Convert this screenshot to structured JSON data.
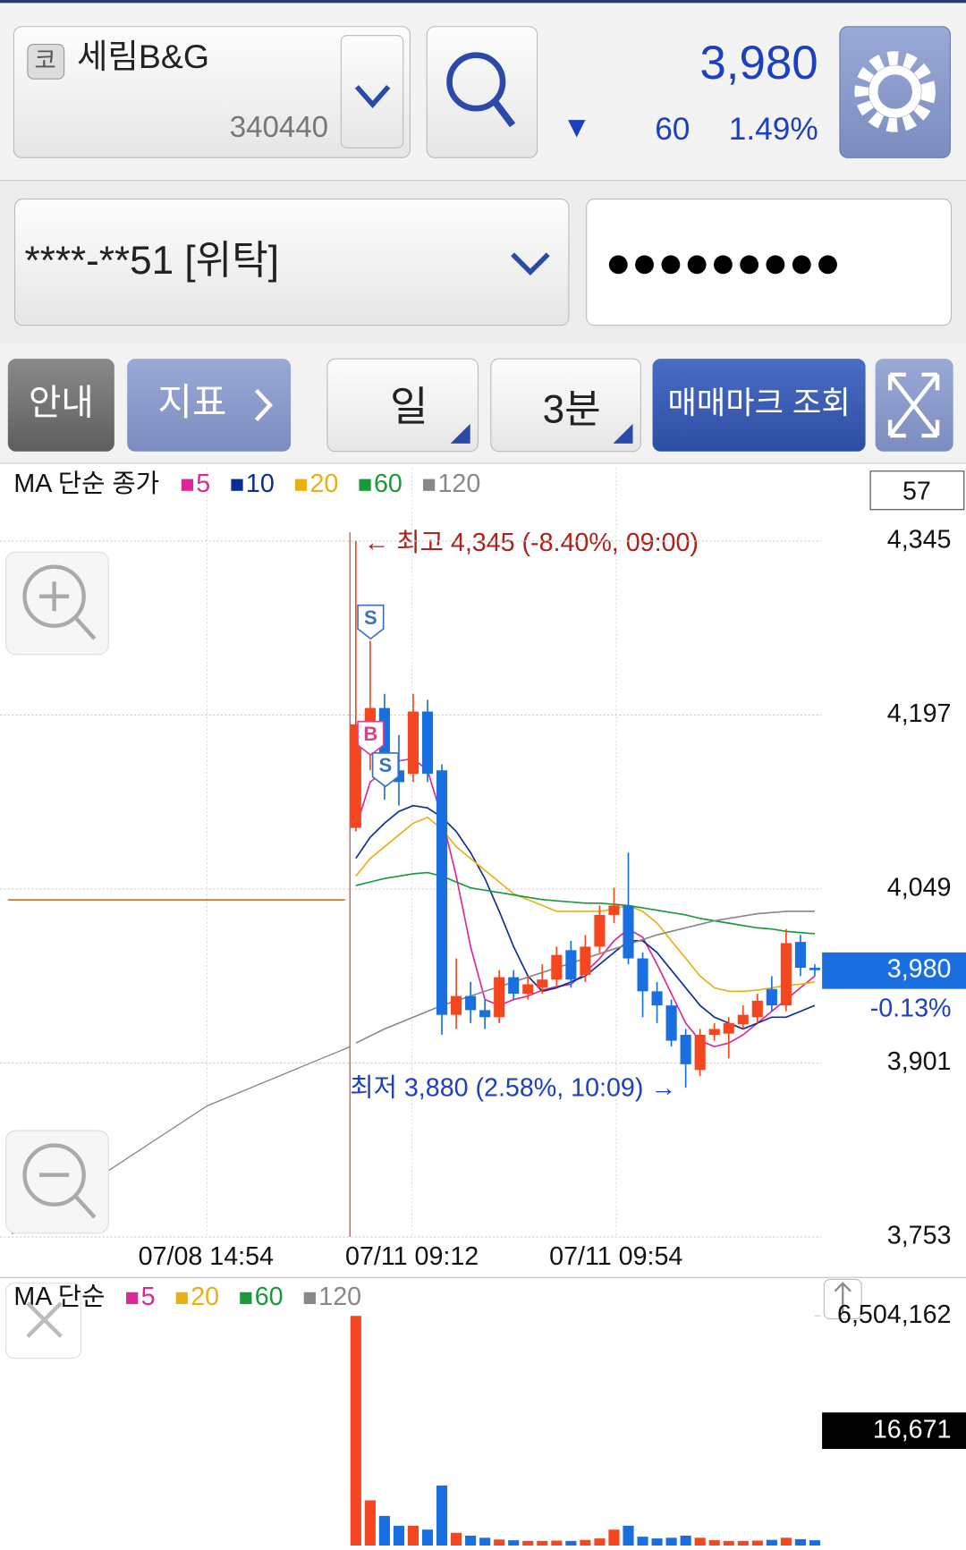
{
  "header": {
    "market_badge": "코",
    "stock_name": "세림B&G",
    "stock_code": "340440",
    "price": "3,980",
    "change_arrow": "▼",
    "change": "60",
    "change_pct": "1.49%"
  },
  "account": {
    "number": "****-**51 [위탁]",
    "password": "●●●●●●●●●"
  },
  "toolbar": {
    "guide": "안내",
    "indicator": "지표",
    "period": "일",
    "interval": "3분",
    "trade_mark": "매매마크 조회"
  },
  "chart_data": {
    "type": "candlestick",
    "legend_title": "MA 단순 종가",
    "legend": [
      {
        "label": "5",
        "color": "#e0249a"
      },
      {
        "label": "10",
        "color": "#0b2b96"
      },
      {
        "label": "20",
        "color": "#e8b012"
      },
      {
        "label": "60",
        "color": "#189a3a"
      },
      {
        "label": "120",
        "color": "#888888"
      }
    ],
    "count": "57",
    "ylim": [
      3753,
      4407
    ],
    "yticks": [
      {
        "value": 4345,
        "label": "4,345"
      },
      {
        "value": 4197,
        "label": "4,197"
      },
      {
        "value": 4049,
        "label": "4,049"
      },
      {
        "value": 3901,
        "label": "3,901"
      },
      {
        "value": 3753,
        "label": "3,753"
      }
    ],
    "current": {
      "value": 3980,
      "label": "3,980"
    },
    "current_change": "-0.13%",
    "high_note": "← 최고 4,345 (-8.40%, 09:00)",
    "low_note": "최저 3,880 (2.58%, 10:09) →",
    "xtick_labels": [
      "07/08 14:54",
      "07/11 09:12",
      "07/11 09:54"
    ],
    "signals": [
      "S",
      "B",
      "S"
    ],
    "up_color": "#f4471f",
    "down_color": "#1a6fe0",
    "candles": [
      {
        "open": 4101,
        "high": 4345,
        "low": 4098,
        "close": 4189
      },
      {
        "open": 4189,
        "high": 4260,
        "low": 4150,
        "close": 4203
      },
      {
        "open": 4203,
        "high": 4215,
        "low": 4125,
        "close": 4143
      },
      {
        "open": 4150,
        "high": 4180,
        "low": 4120,
        "close": 4140
      },
      {
        "open": 4147,
        "high": 4215,
        "low": 4140,
        "close": 4200
      },
      {
        "open": 4200,
        "high": 4210,
        "low": 4140,
        "close": 4147
      },
      {
        "open": 4150,
        "high": 4155,
        "low": 3925,
        "close": 3942
      },
      {
        "open": 3942,
        "high": 3990,
        "low": 3930,
        "close": 3958
      },
      {
        "open": 3958,
        "high": 3970,
        "low": 3935,
        "close": 3946
      },
      {
        "open": 3946,
        "high": 3955,
        "low": 3930,
        "close": 3940
      },
      {
        "open": 3940,
        "high": 3980,
        "low": 3935,
        "close": 3974
      },
      {
        "open": 3974,
        "high": 3980,
        "low": 3955,
        "close": 3960
      },
      {
        "open": 3960,
        "high": 3975,
        "low": 3955,
        "close": 3968
      },
      {
        "open": 3965,
        "high": 3985,
        "low": 3960,
        "close": 3972
      },
      {
        "open": 3972,
        "high": 4000,
        "low": 3965,
        "close": 3993
      },
      {
        "open": 3997,
        "high": 4005,
        "low": 3965,
        "close": 3972
      },
      {
        "open": 3976,
        "high": 4010,
        "low": 3970,
        "close": 4000
      },
      {
        "open": 4000,
        "high": 4035,
        "low": 3995,
        "close": 4027
      },
      {
        "open": 4027,
        "high": 4050,
        "low": 4020,
        "close": 4035
      },
      {
        "open": 4035,
        "high": 4080,
        "low": 3985,
        "close": 3990
      },
      {
        "open": 3990,
        "high": 3995,
        "low": 3940,
        "close": 3962
      },
      {
        "open": 3962,
        "high": 3970,
        "low": 3935,
        "close": 3950
      },
      {
        "open": 3950,
        "high": 3955,
        "low": 3915,
        "close": 3920
      },
      {
        "open": 3925,
        "high": 3930,
        "low": 3880,
        "close": 3900
      },
      {
        "open": 3895,
        "high": 3930,
        "low": 3890,
        "close": 3925
      },
      {
        "open": 3925,
        "high": 3935,
        "low": 3920,
        "close": 3930
      },
      {
        "open": 3926,
        "high": 3940,
        "low": 3905,
        "close": 3935
      },
      {
        "open": 3934,
        "high": 3950,
        "low": 3930,
        "close": 3942
      },
      {
        "open": 3940,
        "high": 3960,
        "low": 3935,
        "close": 3954
      },
      {
        "open": 3964,
        "high": 3975,
        "low": 3945,
        "close": 3950
      },
      {
        "open": 3950,
        "high": 4015,
        "low": 3945,
        "close": 4003
      },
      {
        "open": 4004,
        "high": 4010,
        "low": 3975,
        "close": 3982
      },
      {
        "open": 3982,
        "high": 3985,
        "low": 3975,
        "close": 3980
      }
    ],
    "series": [
      {
        "name": "5",
        "color": "#e0249a",
        "values": [
          4101,
          4140,
          4150,
          4158,
          4160,
          4150,
          4110,
          4060,
          4000,
          3955,
          3950,
          3955,
          3958,
          3963,
          3966,
          3968,
          3978,
          3990,
          4005,
          4015,
          4008,
          3985,
          3960,
          3935,
          3920,
          3915,
          3918,
          3925,
          3935,
          3945,
          3955,
          3965,
          3975
        ]
      },
      {
        "name": "10",
        "color": "#0b2b96",
        "values": [
          4075,
          4093,
          4105,
          4115,
          4120,
          4118,
          4110,
          4098,
          4080,
          4058,
          4030,
          4000,
          3975,
          3962,
          3965,
          3970,
          3975,
          3985,
          3995,
          4005,
          4005,
          3995,
          3980,
          3965,
          3950,
          3940,
          3935,
          3930,
          3935,
          3940,
          3940,
          3945,
          3950
        ]
      },
      {
        "name": "20",
        "color": "#e8b012",
        "values": [
          4060,
          4075,
          4085,
          4095,
          4105,
          4110,
          4100,
          4085,
          4075,
          4065,
          4055,
          4045,
          4040,
          4035,
          4030,
          4030,
          4030,
          4030,
          4032,
          4035,
          4030,
          4020,
          4005,
          3990,
          3975,
          3965,
          3962,
          3962,
          3963,
          3965,
          3967,
          3968,
          3970
        ]
      },
      {
        "name": "60",
        "color": "#189a3a",
        "values": [
          4052,
          4055,
          4058,
          4060,
          4062,
          4063,
          4060,
          4055,
          4050,
          4048,
          4046,
          4044,
          4042,
          4040,
          4039,
          4038,
          4037,
          4037,
          4036,
          4035,
          4033,
          4031,
          4029,
          4027,
          4024,
          4022,
          4020,
          4018,
          4016,
          4015,
          4013,
          4012,
          4011
        ]
      },
      {
        "name": "120",
        "color": "#888888",
        "values": [
          3918,
          3924,
          3930,
          3935,
          3940,
          3945,
          3950,
          3954,
          3958,
          3962,
          3966,
          3970,
          3974,
          3978,
          3982,
          3986,
          3990,
          3994,
          3998,
          4002,
          4006,
          4010,
          4013,
          4016,
          4019,
          4022,
          4024,
          4026,
          4028,
          4029,
          4030,
          4030,
          4030
        ]
      }
    ]
  },
  "volume_chart": {
    "type": "bar",
    "legend_title": "MA 단순",
    "legend": [
      {
        "label": "5",
        "color": "#e0249a"
      },
      {
        "label": "20",
        "color": "#e8b012"
      },
      {
        "label": "60",
        "color": "#189a3a"
      },
      {
        "label": "120",
        "color": "#888888"
      }
    ],
    "ylim": [
      0,
      6504162
    ],
    "yticks": [
      {
        "value": 6504162,
        "label": "6,504,162"
      }
    ],
    "current": "16,671",
    "values": [
      6504162,
      1280000,
      840000,
      560000,
      560000,
      450000,
      1700000,
      360000,
      280000,
      220000,
      170000,
      150000,
      130000,
      130000,
      140000,
      130000,
      160000,
      200000,
      450000,
      560000,
      250000,
      200000,
      220000,
      280000,
      220000,
      150000,
      130000,
      130000,
      140000,
      160000,
      220000,
      180000,
      150000
    ]
  }
}
